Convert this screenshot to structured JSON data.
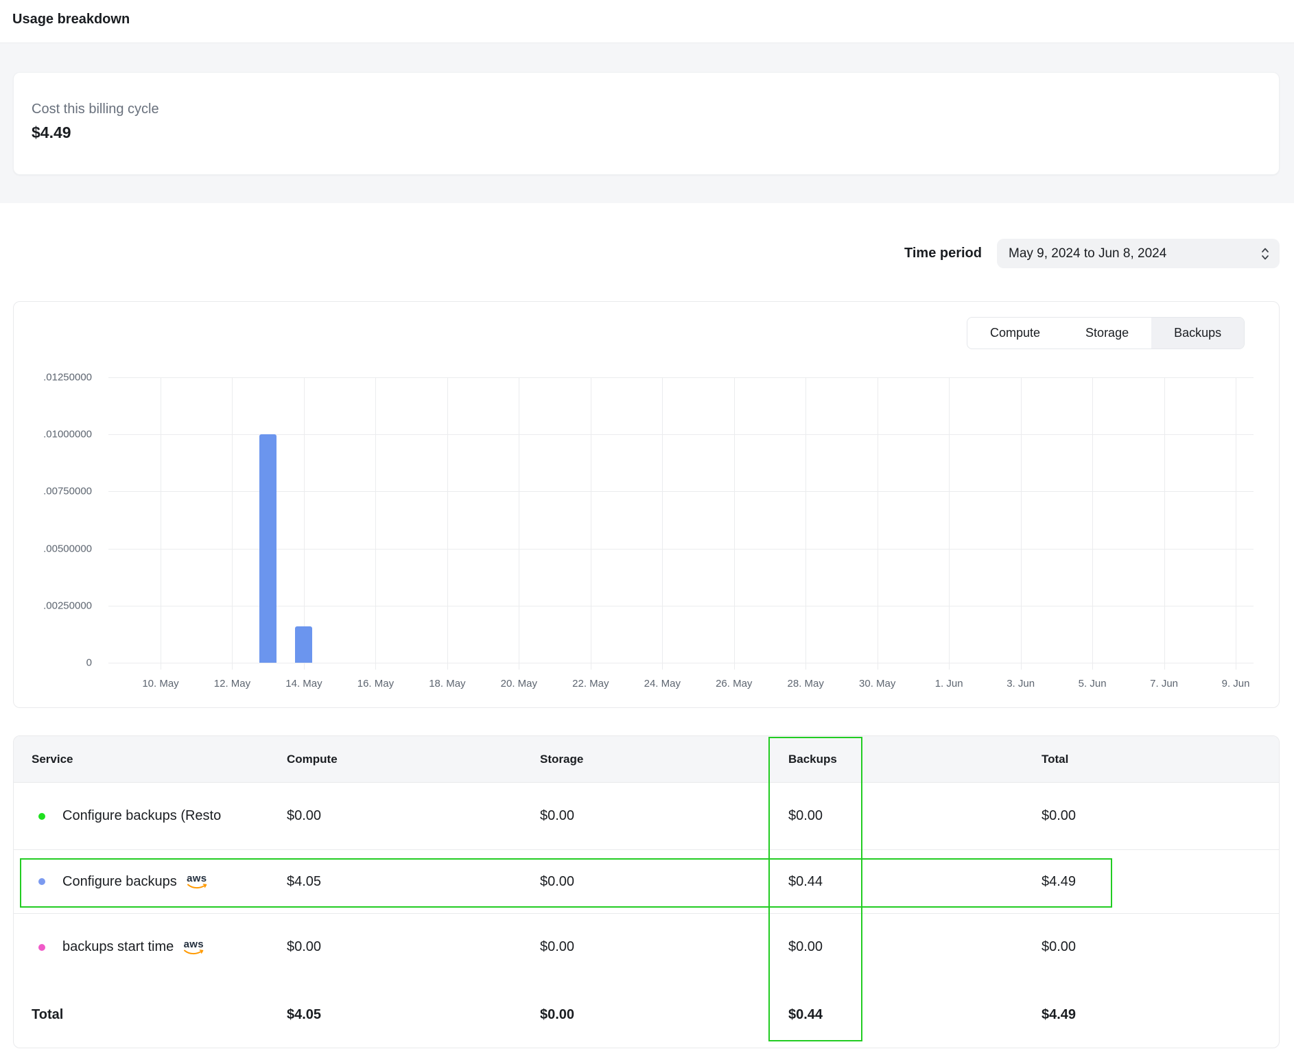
{
  "page": {
    "title": "Usage breakdown"
  },
  "billing_card": {
    "label": "Cost this billing cycle",
    "amount": "$4.49"
  },
  "time_period": {
    "label": "Time period",
    "value": "May 9, 2024 to Jun 8, 2024"
  },
  "chart": {
    "tabs": [
      {
        "key": "compute",
        "label": "Compute",
        "active": false
      },
      {
        "key": "storage",
        "label": "Storage",
        "active": false
      },
      {
        "key": "backups",
        "label": "Backups",
        "active": true
      }
    ]
  },
  "chart_data": {
    "type": "bar",
    "title": "",
    "xlabel": "",
    "ylabel": "",
    "ylim": [
      0,
      0.0125
    ],
    "grid": true,
    "y_tick_labels": [
      ".01250000",
      ".01000000",
      ".00750000",
      ".00500000",
      ".00250000",
      "0"
    ],
    "x_tick_labels": [
      "10. May",
      "12. May",
      "14. May",
      "16. May",
      "18. May",
      "20. May",
      "22. May",
      "24. May",
      "26. May",
      "28. May",
      "30. May",
      "1. Jun",
      "3. Jun",
      "5. Jun",
      "7. Jun",
      "9. Jun"
    ],
    "bars": [
      {
        "x": "13. May",
        "day_offset_from_first_tick": 3,
        "y": 0.01
      },
      {
        "x": "14. May",
        "day_offset_from_first_tick": 4,
        "y": 0.0016
      }
    ],
    "bar_color": "#6b95ee",
    "legend_position": "none"
  },
  "table": {
    "columns": [
      {
        "key": "service",
        "label": "Service"
      },
      {
        "key": "compute",
        "label": "Compute"
      },
      {
        "key": "storage",
        "label": "Storage"
      },
      {
        "key": "backups",
        "label": "Backups"
      },
      {
        "key": "total",
        "label": "Total"
      }
    ],
    "rows": [
      {
        "dot_color": "#1fe01f",
        "service": "Configure backups (Resto",
        "aws_badge": false,
        "compute": "$0.00",
        "storage": "$0.00",
        "backups": "$0.00",
        "total": "$0.00",
        "highlighted": false
      },
      {
        "dot_color": "#7b9af0",
        "service": "Configure backups",
        "aws_badge": true,
        "compute": "$4.05",
        "storage": "$0.00",
        "backups": "$0.44",
        "total": "$4.49",
        "highlighted": true
      },
      {
        "dot_color": "#f05ac8",
        "service": "backups start time",
        "aws_badge": true,
        "compute": "$0.00",
        "storage": "$0.00",
        "backups": "$0.00",
        "total": "$0.00",
        "highlighted": false
      }
    ],
    "total_row": {
      "label": "Total",
      "compute": "$4.05",
      "storage": "$0.00",
      "backups": "$0.44",
      "total": "$4.49"
    },
    "aws_badge_text": "aws"
  },
  "annotations": {
    "highlight_color": "#22cc22"
  }
}
